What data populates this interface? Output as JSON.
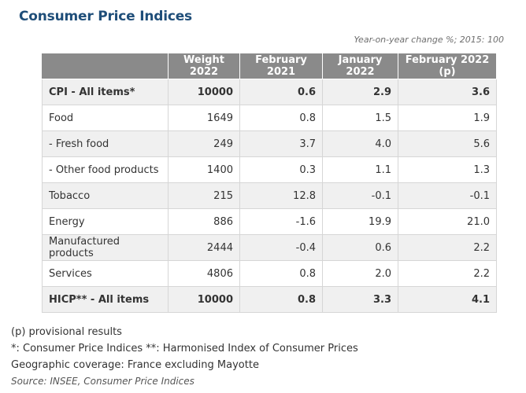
{
  "title": "Consumer Price Indices",
  "subtitle": "Year-on-year change %; 2015: 100",
  "table": {
    "headers": [
      "",
      "Weight 2022",
      "February 2021",
      "January 2022",
      "February 2022 (p)"
    ],
    "rows": [
      {
        "label": "CPI - All items*",
        "values": [
          "10000",
          "0.6",
          "2.9",
          "3.6"
        ],
        "bold": true
      },
      {
        "label": "Food",
        "values": [
          "1649",
          "0.8",
          "1.5",
          "1.9"
        ]
      },
      {
        "label": "- Fresh food",
        "values": [
          "249",
          "3.7",
          "4.0",
          "5.6"
        ]
      },
      {
        "label": "- Other food products",
        "values": [
          "1400",
          "0.3",
          "1.1",
          "1.3"
        ]
      },
      {
        "label": "Tobacco",
        "values": [
          "215",
          "12.8",
          "-0.1",
          "-0.1"
        ]
      },
      {
        "label": "Energy",
        "values": [
          "886",
          "-1.6",
          "19.9",
          "21.0"
        ]
      },
      {
        "label": "Manufactured products",
        "values": [
          "2444",
          "-0.4",
          "0.6",
          "2.2"
        ]
      },
      {
        "label": "Services",
        "values": [
          "4806",
          "0.8",
          "2.0",
          "2.2"
        ]
      },
      {
        "label": "HICP** - All items",
        "values": [
          "10000",
          "0.8",
          "3.3",
          "4.1"
        ],
        "bold": true
      }
    ]
  },
  "notes": {
    "provisional": "(p) provisional results",
    "definitions": "*: Consumer Price Indices **: Harmonised Index of Consumer Prices",
    "coverage": "Geographic coverage: France excluding Mayotte",
    "source": "Source: INSEE, Consumer Price Indices"
  }
}
